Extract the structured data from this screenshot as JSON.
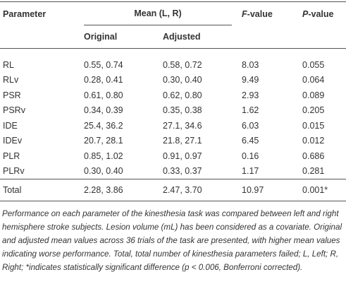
{
  "table": {
    "header": {
      "parameter": "Parameter",
      "mean": "Mean (L, R)",
      "f_value": "F-value",
      "p_value": "P-value",
      "original": "Original",
      "adjusted": "Adjusted"
    },
    "rows": [
      [
        "RL",
        "0.55, 0.74",
        "0.58, 0.72",
        "8.03",
        "0.055"
      ],
      [
        "RLv",
        "0.28, 0.41",
        "0.30, 0.40",
        "9.49",
        "0.064"
      ],
      [
        "PSR",
        "0.61, 0.80",
        "0.62, 0.80",
        "2.93",
        "0.089"
      ],
      [
        "PSRv",
        "0.34, 0.39",
        "0.35, 0.38",
        "1.62",
        "0.205"
      ],
      [
        "IDE",
        "25.4, 36.2",
        "27.1, 34.6",
        "6.03",
        "0.015"
      ],
      [
        "IDEv",
        "20.7, 28.1",
        "21.8, 27.1",
        "6.45",
        "0.012"
      ],
      [
        "PLR",
        "0.85, 1.02",
        "0.91, 0.97",
        "0.16",
        "0.686"
      ],
      [
        "PLRv",
        "0.30, 0.40",
        "0.33, 0.37",
        "1.17",
        "0.281"
      ],
      [
        "Total",
        "2.28, 3.86",
        "2.47, 3.70",
        "10.97",
        "0.001*"
      ]
    ]
  },
  "footnote": "Performance on each parameter of the kinesthesia task was compared between left and right hemisphere stroke subjects. Lesion volume (mL) has been considered as a covariate. Original and adjusted mean values across 36 trials of the task are presented, with higher mean values indicating worse performance. Total, total number of kinesthesia parameters failed; L, Left; R, Right; *indicates statistically significant difference (p < 0.006, Bonferroni corrected)."
}
